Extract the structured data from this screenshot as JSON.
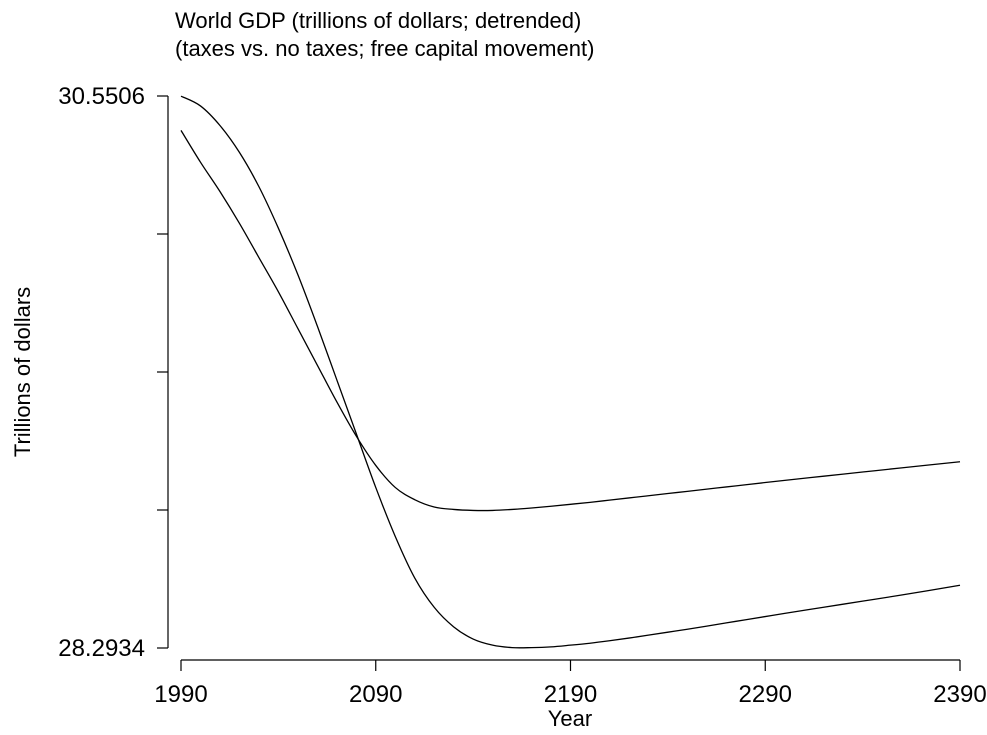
{
  "chart_data": {
    "type": "line",
    "title": "World GDP (trillions of dollars; detrended)",
    "subtitle": "(taxes vs. no taxes; free capital movement)",
    "xlabel": "Year",
    "ylabel": "Trillions of dollars",
    "xlim": [
      1990,
      2390
    ],
    "ylim": [
      28.2934,
      30.5506
    ],
    "x_ticks": [
      "1990",
      "2090",
      "2190",
      "2290",
      "2390"
    ],
    "y_ticks": [
      28.2934,
      28.8577,
      29.422,
      29.9863,
      30.5506
    ],
    "y_tick_labels": [
      "28.2934",
      "",
      "",
      "",
      "30.5506"
    ],
    "grid": false,
    "series": [
      {
        "color": "#000000",
        "x": [
          1990,
          2000,
          2010,
          2020,
          2030,
          2040,
          2050,
          2060,
          2070,
          2080,
          2090,
          2100,
          2110,
          2120,
          2130,
          2140,
          2150,
          2160,
          2170,
          2180,
          2190,
          2200,
          2210,
          2220,
          2230,
          2240,
          2250,
          2260,
          2270,
          2280,
          2290,
          2300,
          2320,
          2340,
          2360,
          2390
        ],
        "values": [
          30.55,
          30.51,
          30.43,
          30.32,
          30.18,
          30.01,
          29.82,
          29.61,
          29.39,
          29.17,
          28.95,
          28.75,
          28.58,
          28.46,
          28.38,
          28.33,
          28.305,
          28.295,
          28.295,
          28.298,
          28.305,
          28.313,
          28.323,
          28.334,
          28.346,
          28.358,
          28.37,
          28.383,
          28.396,
          28.409,
          28.422,
          28.435,
          28.46,
          28.485,
          28.51,
          28.55
        ]
      },
      {
        "color": "#000000",
        "x": [
          1990,
          2000,
          2010,
          2020,
          2030,
          2040,
          2050,
          2060,
          2070,
          2080,
          2090,
          2100,
          2110,
          2120,
          2130,
          2140,
          2150,
          2160,
          2170,
          2180,
          2190,
          2200,
          2210,
          2220,
          2230,
          2240,
          2250,
          2260,
          2270,
          2280,
          2290,
          2300,
          2320,
          2340,
          2360,
          2390
        ],
        "values": [
          30.41,
          30.28,
          30.16,
          30.03,
          29.89,
          29.75,
          29.6,
          29.45,
          29.3,
          29.16,
          29.04,
          28.95,
          28.9,
          28.87,
          28.86,
          28.856,
          28.856,
          28.86,
          28.866,
          28.873,
          28.881,
          28.889,
          28.898,
          28.907,
          28.916,
          28.925,
          28.934,
          28.943,
          28.952,
          28.961,
          28.97,
          28.979,
          28.996,
          29.013,
          29.03,
          29.055
        ]
      }
    ]
  }
}
